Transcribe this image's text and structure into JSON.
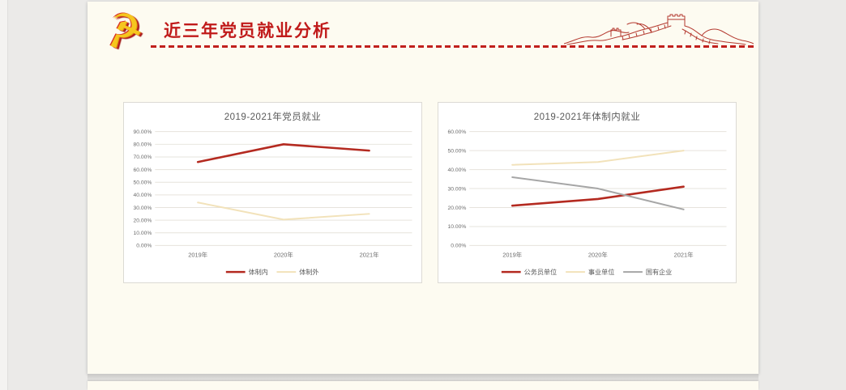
{
  "page": {
    "background": "#ebeae8"
  },
  "slide": {
    "background": "#fdfbf1"
  },
  "header": {
    "title": "近三年党员就业分析",
    "title_color": "#c01a1a",
    "emblem_icon": "party-emblem-icon",
    "emblem_glyph": "☭",
    "divider_color": "#c0201d",
    "decoration": "great-wall-line-drawing"
  },
  "chart_data": [
    {
      "type": "line",
      "title": "2019-2021年党员就业",
      "categories": [
        "2019年",
        "2020年",
        "2021年"
      ],
      "series": [
        {
          "name": "体制内",
          "color": "#b42a20",
          "line_width": 2.6,
          "values": [
            66,
            80,
            75
          ]
        },
        {
          "name": "体制外",
          "color": "#f2e2ba",
          "line_width": 2.0,
          "values": [
            34,
            20.5,
            25
          ]
        }
      ],
      "ylim": [
        0,
        90
      ],
      "ytick_step": 10,
      "ytick_format": "0.00%",
      "grid": true,
      "legend_position": "bottom",
      "plot_background": "#ffffff"
    },
    {
      "type": "line",
      "title": "2019-2021年体制内就业",
      "categories": [
        "2019年",
        "2020年",
        "2021年"
      ],
      "series": [
        {
          "name": "公务员单位",
          "color": "#b42a20",
          "line_width": 2.6,
          "values": [
            21,
            24.5,
            31
          ]
        },
        {
          "name": "事业单位",
          "color": "#f2e2ba",
          "line_width": 2.0,
          "values": [
            42.5,
            44,
            50
          ]
        },
        {
          "name": "国有企业",
          "color": "#a6a6a6",
          "line_width": 2.0,
          "values": [
            36,
            30,
            19
          ]
        }
      ],
      "ylim": [
        0,
        60
      ],
      "ytick_step": 10,
      "ytick_format": "0.00%",
      "grid": true,
      "legend_position": "bottom",
      "plot_background": "#ffffff"
    }
  ]
}
